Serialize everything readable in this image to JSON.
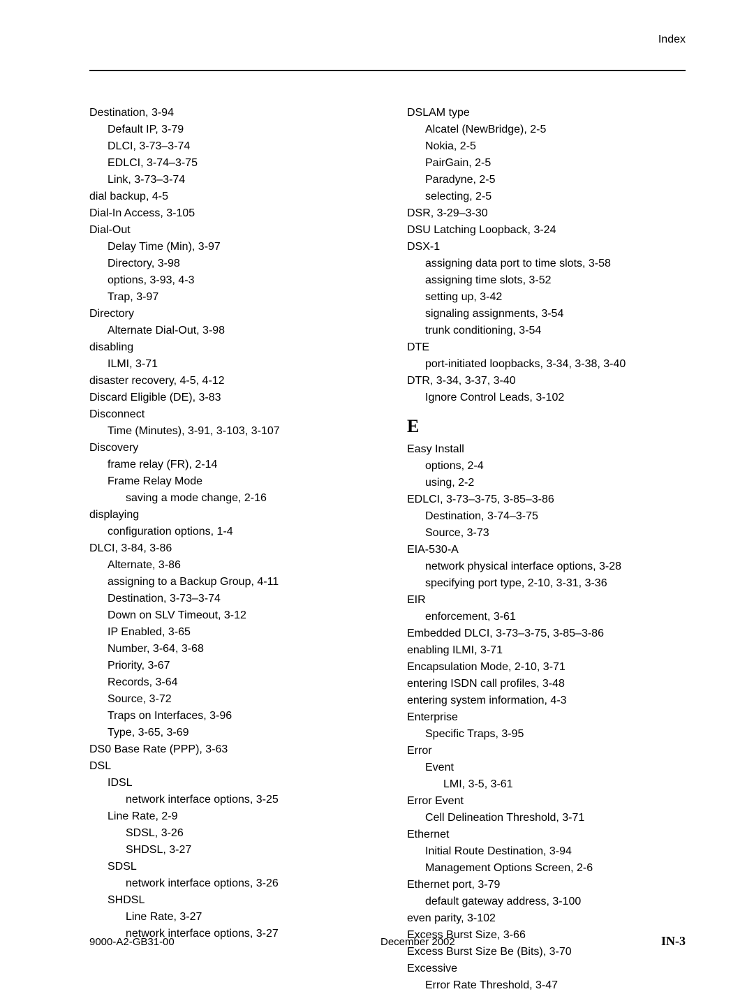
{
  "header": {
    "label": "Index"
  },
  "footer": {
    "left": "9000-A2-GB31-00",
    "center": "December 2002",
    "right": "IN-3"
  },
  "left_col": [
    {
      "i": 0,
      "t": "Destination,  3-94"
    },
    {
      "i": 1,
      "t": "Default IP,  3-79"
    },
    {
      "i": 1,
      "t": "DLCI,  3-73–3-74"
    },
    {
      "i": 1,
      "t": "EDLCI,  3-74–3-75"
    },
    {
      "i": 1,
      "t": "Link,  3-73–3-74"
    },
    {
      "i": 0,
      "t": "dial backup,  4-5"
    },
    {
      "i": 0,
      "t": "Dial-In Access,  3-105"
    },
    {
      "i": 0,
      "t": "Dial-Out"
    },
    {
      "i": 1,
      "t": "Delay Time (Min),  3-97"
    },
    {
      "i": 1,
      "t": "Directory,  3-98"
    },
    {
      "i": 1,
      "t": "options,  3-93, 4-3"
    },
    {
      "i": 1,
      "t": "Trap,  3-97"
    },
    {
      "i": 0,
      "t": "Directory"
    },
    {
      "i": 1,
      "t": "Alternate Dial-Out,  3-98"
    },
    {
      "i": 0,
      "t": "disabling"
    },
    {
      "i": 1,
      "t": "ILMI,  3-71"
    },
    {
      "i": 0,
      "t": "disaster recovery,  4-5, 4-12"
    },
    {
      "i": 0,
      "t": "Discard Eligible (DE),  3-83"
    },
    {
      "i": 0,
      "t": "Disconnect"
    },
    {
      "i": 1,
      "t": "Time (Minutes),  3-91, 3-103, 3-107"
    },
    {
      "i": 0,
      "t": "Discovery"
    },
    {
      "i": 1,
      "t": "frame relay (FR),  2-14"
    },
    {
      "i": 1,
      "t": "Frame Relay Mode"
    },
    {
      "i": 2,
      "t": "saving a mode change,  2-16"
    },
    {
      "i": 0,
      "t": "displaying"
    },
    {
      "i": 1,
      "t": "configuration options,  1-4"
    },
    {
      "i": 0,
      "t": "DLCI,  3-84, 3-86"
    },
    {
      "i": 1,
      "t": "Alternate,  3-86"
    },
    {
      "i": 1,
      "t": "assigning to a Backup Group,  4-11"
    },
    {
      "i": 1,
      "t": "Destination,  3-73–3-74"
    },
    {
      "i": 1,
      "t": "Down on SLV Timeout,  3-12"
    },
    {
      "i": 1,
      "t": "IP Enabled,  3-65"
    },
    {
      "i": 1,
      "t": "Number,  3-64, 3-68"
    },
    {
      "i": 1,
      "t": "Priority,  3-67"
    },
    {
      "i": 1,
      "t": "Records,  3-64"
    },
    {
      "i": 1,
      "t": "Source,  3-72"
    },
    {
      "i": 1,
      "t": "Traps on Interfaces,  3-96"
    },
    {
      "i": 1,
      "t": "Type,  3-65, 3-69"
    },
    {
      "i": 0,
      "t": "DS0 Base Rate (PPP),  3-63"
    },
    {
      "i": 0,
      "t": "DSL"
    },
    {
      "i": 1,
      "t": "IDSL"
    },
    {
      "i": 2,
      "t": "network interface options,  3-25"
    },
    {
      "i": 1,
      "t": "Line Rate,  2-9"
    },
    {
      "i": 2,
      "t": "SDSL,  3-26"
    },
    {
      "i": 2,
      "t": "SHDSL,  3-27"
    },
    {
      "i": 1,
      "t": "SDSL"
    },
    {
      "i": 2,
      "t": "network interface options,  3-26"
    },
    {
      "i": 1,
      "t": "SHDSL"
    },
    {
      "i": 2,
      "t": "Line Rate,  3-27"
    },
    {
      "i": 2,
      "t": "network interface options,  3-27"
    }
  ],
  "right_col": [
    {
      "i": 0,
      "t": "DSLAM type"
    },
    {
      "i": 1,
      "t": "Alcatel (NewBridge),  2-5"
    },
    {
      "i": 1,
      "t": "Nokia,  2-5"
    },
    {
      "i": 1,
      "t": "PairGain,  2-5"
    },
    {
      "i": 1,
      "t": "Paradyne,  2-5"
    },
    {
      "i": 1,
      "t": "selecting,  2-5"
    },
    {
      "i": 0,
      "t": "DSR,  3-29–3-30"
    },
    {
      "i": 0,
      "t": "DSU Latching Loopback,  3-24"
    },
    {
      "i": 0,
      "t": "DSX-1"
    },
    {
      "i": 1,
      "t": "assigning data port to time slots,  3-58"
    },
    {
      "i": 1,
      "t": "assigning time slots,  3-52"
    },
    {
      "i": 1,
      "t": "setting up,  3-42"
    },
    {
      "i": 1,
      "t": "signaling assignments,  3-54"
    },
    {
      "i": 1,
      "t": "trunk conditioning,  3-54"
    },
    {
      "i": 0,
      "t": "DTE"
    },
    {
      "i": 1,
      "t": "port-initiated loopbacks,  3-34, 3-38, 3-40"
    },
    {
      "i": 0,
      "t": "DTR,  3-34, 3-37, 3-40"
    },
    {
      "i": 1,
      "t": "Ignore Control Leads,  3-102"
    },
    {
      "letter": "E"
    },
    {
      "i": 0,
      "t": "Easy Install"
    },
    {
      "i": 1,
      "t": "options,  2-4"
    },
    {
      "i": 1,
      "t": "using,  2-2"
    },
    {
      "i": 0,
      "t": "EDLCI,  3-73–3-75, 3-85–3-86"
    },
    {
      "i": 1,
      "t": "Destination,  3-74–3-75"
    },
    {
      "i": 1,
      "t": "Source,  3-73"
    },
    {
      "i": 0,
      "t": "EIA-530-A"
    },
    {
      "i": 1,
      "t": "network physical interface options,  3-28"
    },
    {
      "i": 1,
      "t": "specifying port type,  2-10, 3-31, 3-36"
    },
    {
      "i": 0,
      "t": "EIR"
    },
    {
      "i": 1,
      "t": "enforcement,  3-61"
    },
    {
      "i": 0,
      "t": "Embedded DLCI,  3-73–3-75, 3-85–3-86"
    },
    {
      "i": 0,
      "t": "enabling ILMI,  3-71"
    },
    {
      "i": 0,
      "t": "Encapsulation Mode,  2-10, 3-71"
    },
    {
      "i": 0,
      "t": "entering ISDN call profiles,  3-48"
    },
    {
      "i": 0,
      "t": "entering system information,  4-3"
    },
    {
      "i": 0,
      "t": "Enterprise"
    },
    {
      "i": 1,
      "t": "Specific Traps,  3-95"
    },
    {
      "i": 0,
      "t": "Error"
    },
    {
      "i": 1,
      "t": "Event"
    },
    {
      "i": 2,
      "t": "LMI,  3-5, 3-61"
    },
    {
      "i": 0,
      "t": "Error Event"
    },
    {
      "i": 1,
      "t": "Cell Delineation Threshold,  3-71"
    },
    {
      "i": 0,
      "t": "Ethernet"
    },
    {
      "i": 1,
      "t": "Initial Route Destination,  3-94"
    },
    {
      "i": 1,
      "t": "Management Options Screen,  2-6"
    },
    {
      "i": 0,
      "t": "Ethernet port,  3-79"
    },
    {
      "i": 1,
      "t": "default gateway address,  3-100"
    },
    {
      "i": 0,
      "t": "even parity,  3-102"
    },
    {
      "i": 0,
      "t": "Excess Burst Size,  3-66"
    },
    {
      "i": 0,
      "t": "Excess Burst Size Be (Bits),  3-70"
    },
    {
      "i": 0,
      "t": "Excessive"
    },
    {
      "i": 1,
      "t": "Error Rate Threshold,  3-47"
    }
  ]
}
